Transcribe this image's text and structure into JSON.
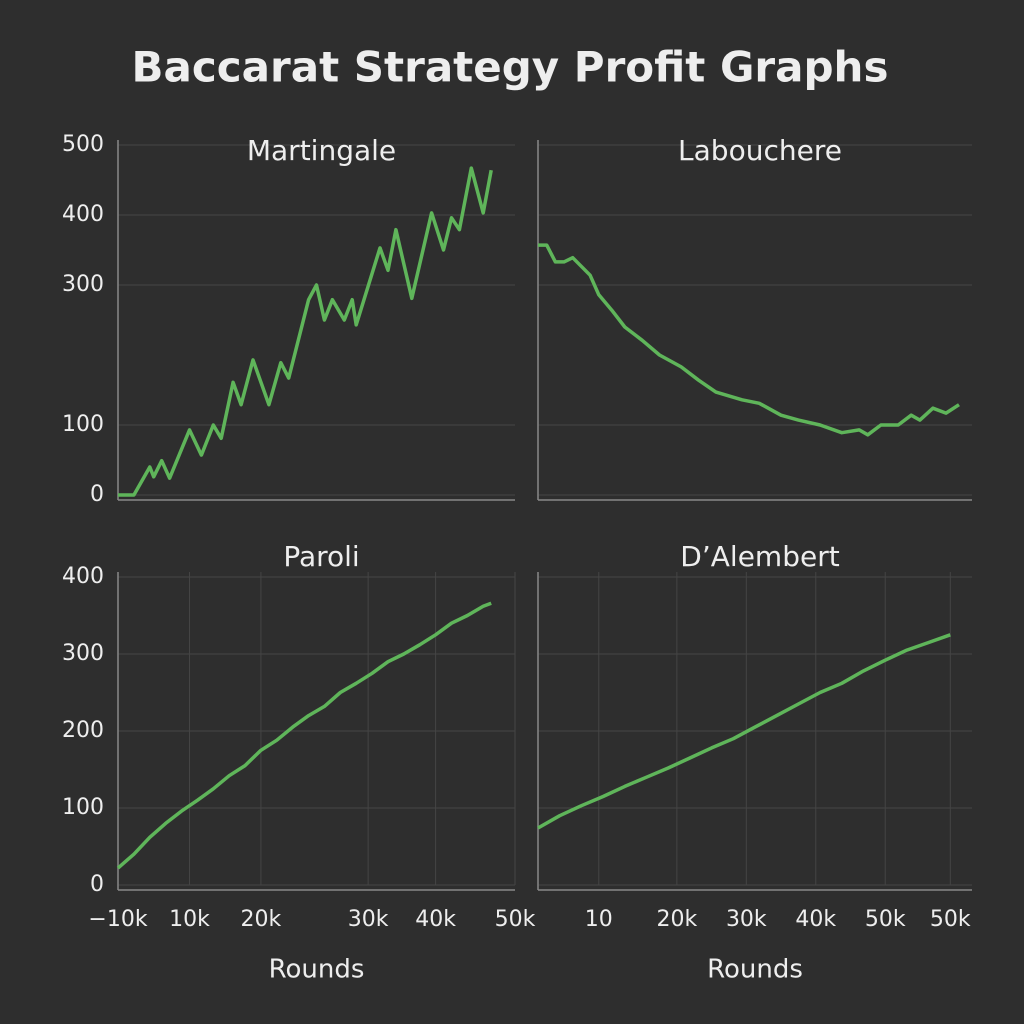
{
  "title": "Baccarat Strategy Profit Graphs",
  "chart_data": [
    {
      "type": "line",
      "title": "Martingale",
      "x": [
        0,
        4,
        8,
        9,
        11,
        13,
        18,
        21,
        24,
        26,
        29,
        31,
        34,
        38,
        41,
        43,
        48,
        50,
        52,
        54,
        57,
        59,
        60,
        66,
        68,
        70,
        74,
        79,
        82,
        84,
        86,
        89,
        92,
        94
      ],
      "series": [
        {
          "color": "#5fb55a",
          "values": [
            0,
            0,
            40,
            26,
            49,
            24,
            93,
            57,
            100,
            81,
            161,
            129,
            193,
            129,
            189,
            167,
            279,
            300,
            250,
            279,
            250,
            279,
            243,
            353,
            321,
            379,
            281,
            403,
            350,
            396,
            379,
            467,
            403,
            464
          ]
        }
      ],
      "xlim": [
        0,
        100
      ],
      "ylim": [
        0,
        500
      ],
      "yticks": [
        500,
        400,
        300,
        100,
        0
      ],
      "grid": true
    },
    {
      "type": "line",
      "title": "Labouchere",
      "x": [
        0,
        2,
        4,
        6,
        8,
        12,
        14,
        17,
        20,
        24,
        28,
        33,
        37,
        41,
        47,
        51,
        56,
        60,
        65,
        70,
        74,
        76,
        79,
        83,
        86,
        88,
        91,
        94,
        97
      ],
      "series": [
        {
          "color": "#5fb55a",
          "values": [
            357,
            357,
            333,
            333,
            339,
            314,
            286,
            264,
            240,
            221,
            200,
            183,
            164,
            147,
            136,
            131,
            114,
            107,
            100,
            89,
            93,
            86,
            100,
            100,
            114,
            107,
            124,
            117,
            129
          ]
        }
      ],
      "xlim": [
        0,
        100
      ],
      "ylim": [
        0,
        500
      ]
    },
    {
      "type": "line",
      "title": "Paroli",
      "xlabel": "Rounds",
      "x": [
        0,
        4,
        8,
        12,
        16,
        20,
        24,
        28,
        32,
        36,
        40,
        44,
        48,
        52,
        56,
        60,
        64,
        68,
        72,
        76,
        80,
        84,
        88,
        92,
        94
      ],
      "series": [
        {
          "color": "#5fb55a",
          "values": [
            22,
            40,
            62,
            80,
            96,
            110,
            125,
            142,
            155,
            175,
            188,
            205,
            220,
            232,
            250,
            262,
            275,
            290,
            300,
            312,
            325,
            340,
            350,
            362,
            366
          ]
        }
      ],
      "xlim": [
        0,
        100
      ],
      "ylim": [
        0,
        400
      ],
      "yticks": [
        400,
        300,
        200,
        100,
        0
      ],
      "xticks": [
        {
          "value": 0,
          "label": "−10k"
        },
        {
          "value": 18,
          "label": "10k"
        },
        {
          "value": 36,
          "label": "20k"
        },
        {
          "value": 63,
          "label": "30k"
        },
        {
          "value": 80,
          "label": "40k"
        },
        {
          "value": 100,
          "label": "50k"
        }
      ],
      "grid": true
    },
    {
      "type": "line",
      "title": "D’Alembert",
      "xlabel": "Rounds",
      "x": [
        0,
        5,
        10,
        15,
        20,
        25,
        30,
        35,
        40,
        45,
        50,
        55,
        60,
        65,
        70,
        75,
        80,
        85,
        90,
        95
      ],
      "series": [
        {
          "color": "#5fb55a",
          "values": [
            74,
            90,
            103,
            115,
            128,
            140,
            152,
            165,
            178,
            190,
            205,
            220,
            235,
            250,
            262,
            278,
            292,
            305,
            315,
            325
          ]
        }
      ],
      "xlim": [
        0,
        100
      ],
      "ylim": [
        0,
        400
      ],
      "xticks": [
        {
          "value": 14,
          "label": "10"
        },
        {
          "value": 32,
          "label": "20k"
        },
        {
          "value": 48,
          "label": "30k"
        },
        {
          "value": 64,
          "label": "40k"
        },
        {
          "value": 80,
          "label": "50k"
        },
        {
          "value": 95,
          "label": "50k"
        }
      ]
    }
  ]
}
